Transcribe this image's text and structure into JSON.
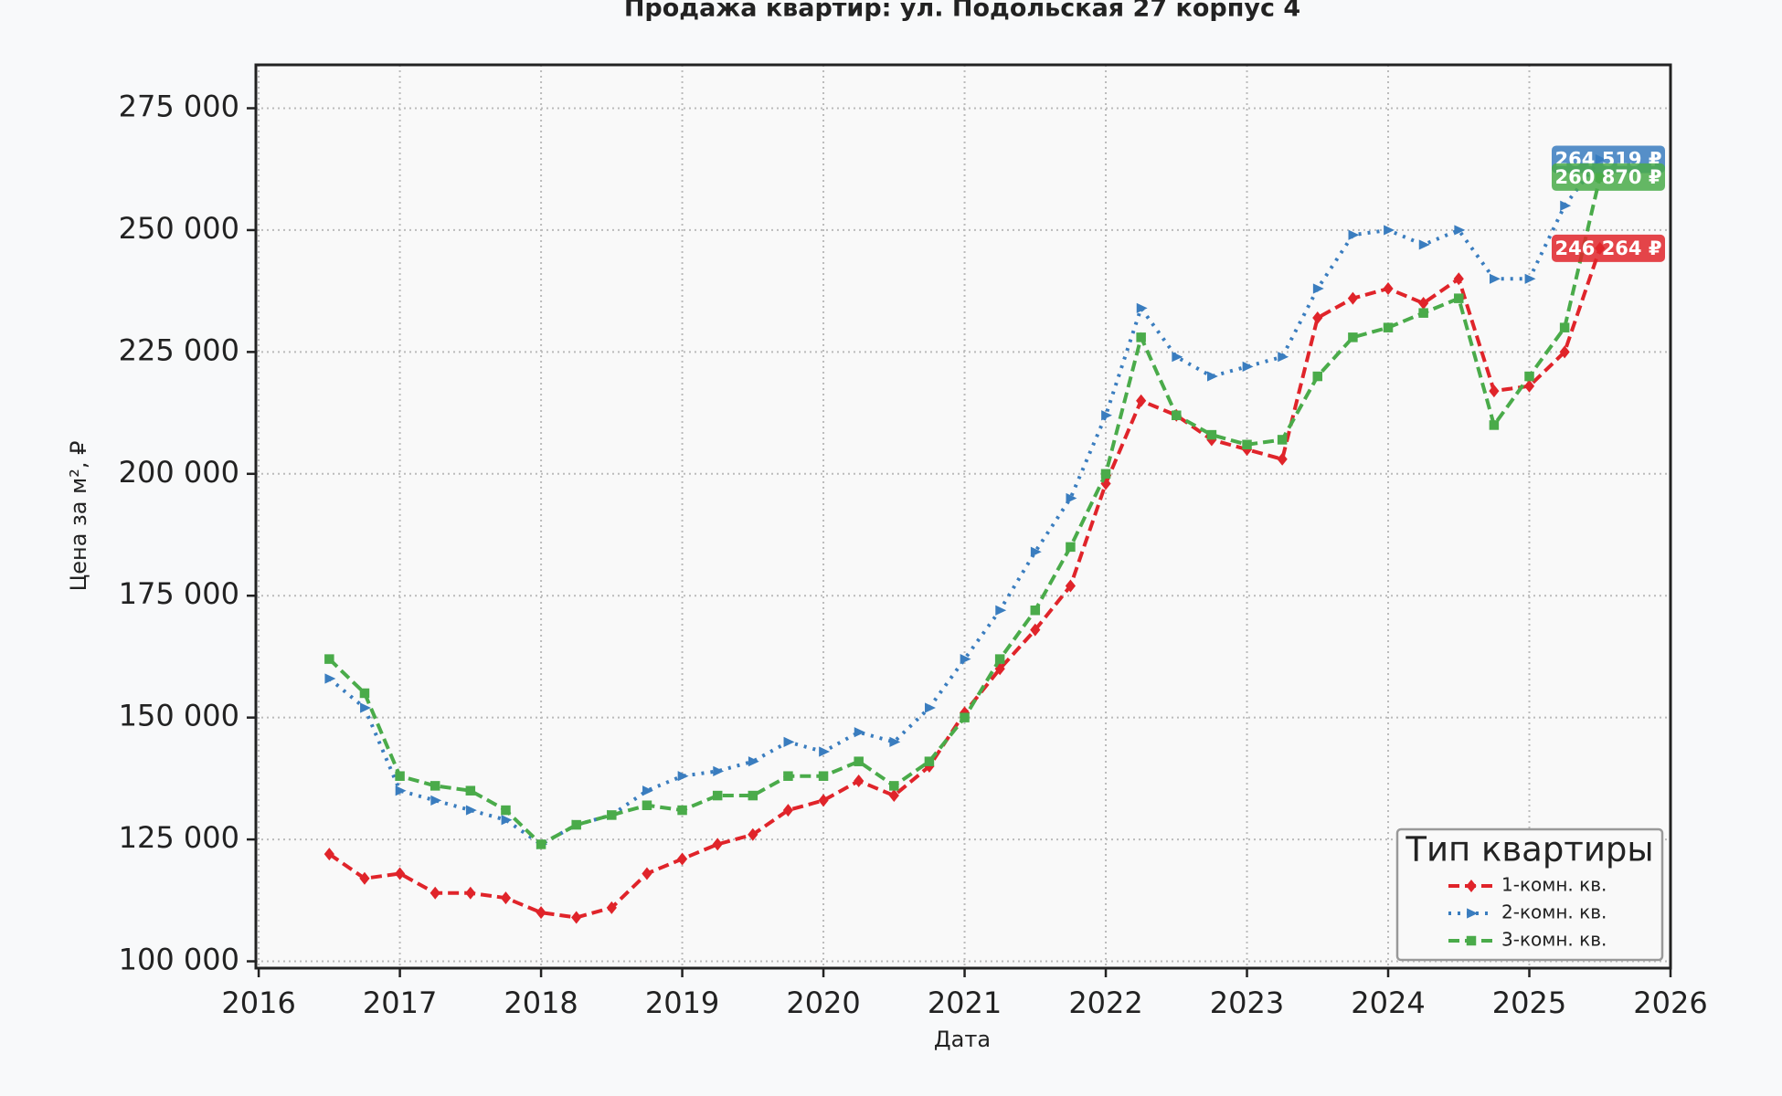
{
  "chart_data": {
    "type": "line",
    "title": "Продажа квартир: ул. Подольская 27 корпус 4",
    "x_label": "Дата",
    "y_label": "Цена за м², ₽",
    "legend_title": "Тип квартиры",
    "legend": "lower right",
    "grid": true,
    "x": [
      2016.5,
      2016.75,
      2017.0,
      2017.25,
      2017.5,
      2017.75,
      2018.0,
      2018.25,
      2018.5,
      2018.75,
      2019.0,
      2019.25,
      2019.5,
      2019.75,
      2020.0,
      2020.25,
      2020.5,
      2020.75,
      2021.0,
      2021.25,
      2021.5,
      2021.75,
      2022.0,
      2022.25,
      2022.5,
      2022.75,
      2023.0,
      2023.25,
      2023.5,
      2023.75,
      2024.0,
      2024.25,
      2024.5,
      2024.75,
      2025.0,
      2025.25,
      2025.5
    ],
    "series": [
      {
        "name": "1-комн. кв.",
        "color": "#e0242a",
        "marker": "diamond",
        "dash": "dashed",
        "end_label": "246 264 ₽",
        "values": [
          122000,
          117000,
          118000,
          114000,
          114000,
          113000,
          110000,
          109000,
          111000,
          118000,
          121000,
          124000,
          126000,
          131000,
          133000,
          137000,
          134000,
          140000,
          151000,
          160000,
          168000,
          177000,
          198000,
          215000,
          212000,
          207000,
          205000,
          203000,
          232000,
          236000,
          238000,
          235000,
          240000,
          217000,
          218000,
          225000,
          246264
        ]
      },
      {
        "name": "2-комн. кв.",
        "color": "#3a7dbf",
        "marker": "triangle",
        "dash": "dotted",
        "end_label": "264 519 ₽",
        "values": [
          158000,
          152000,
          135000,
          133000,
          131000,
          129000,
          124000,
          128000,
          130000,
          135000,
          138000,
          139000,
          141000,
          145000,
          143000,
          147000,
          145000,
          152000,
          162000,
          172000,
          184000,
          195000,
          212000,
          234000,
          224000,
          220000,
          222000,
          224000,
          238000,
          249000,
          250000,
          247000,
          250000,
          240000,
          240000,
          255000,
          264519
        ]
      },
      {
        "name": "3-комн. кв.",
        "color": "#4aab4a",
        "marker": "square",
        "dash": "dashed",
        "end_label": "260 870 ₽",
        "values": [
          162000,
          155000,
          138000,
          136000,
          135000,
          131000,
          124000,
          128000,
          130000,
          132000,
          131000,
          134000,
          134000,
          138000,
          138000,
          141000,
          136000,
          141000,
          150000,
          162000,
          172000,
          185000,
          200000,
          228000,
          212000,
          208000,
          206000,
          207000,
          220000,
          228000,
          230000,
          233000,
          236000,
          210000,
          220000,
          230000,
          260870
        ]
      }
    ],
    "xlim": [
      2015.98,
      2026
    ],
    "xticks": [
      2016,
      2017,
      2018,
      2019,
      2020,
      2021,
      2022,
      2023,
      2024,
      2025,
      2026
    ],
    "ylim": [
      98600,
      283900
    ],
    "yticks": [
      {
        "value": 100000,
        "label": "100 000"
      },
      {
        "value": 125000,
        "label": "125 000"
      },
      {
        "value": 150000,
        "label": "150 000"
      },
      {
        "value": 175000,
        "label": "175 000"
      },
      {
        "value": 200000,
        "label": "200 000"
      },
      {
        "value": 225000,
        "label": "225 000"
      },
      {
        "value": 250000,
        "label": "250 000"
      },
      {
        "value": 275000,
        "label": "275 000"
      }
    ]
  }
}
